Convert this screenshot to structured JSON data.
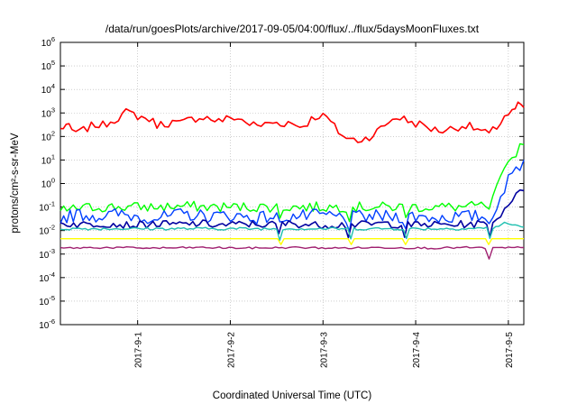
{
  "chart_data": {
    "type": "line",
    "title": "/data/run/goesPlots/archive/2017-09-05/04:00/flux/../flux/5daysMoonFluxes.txt",
    "xlabel": "Coordinated Universal Time (UTC)",
    "ylabel": "protons/cm²-s-sr-MeV",
    "yscale": "log",
    "ylim": [
      1e-06,
      1000000.0
    ],
    "xlim": [
      "2017-08-31T04:00",
      "2017-09-05T04:00"
    ],
    "grid": true,
    "y_ticks": [
      {
        "base": "10",
        "exp": "-6"
      },
      {
        "base": "10",
        "exp": "-5"
      },
      {
        "base": "10",
        "exp": "-4"
      },
      {
        "base": "10",
        "exp": "-3"
      },
      {
        "base": "10",
        "exp": "-2"
      },
      {
        "base": "10",
        "exp": "-1"
      },
      {
        "base": "10",
        "exp": "0"
      },
      {
        "base": "10",
        "exp": "1"
      },
      {
        "base": "10",
        "exp": "2"
      },
      {
        "base": "10",
        "exp": "3"
      },
      {
        "base": "10",
        "exp": "4"
      },
      {
        "base": "10",
        "exp": "5"
      },
      {
        "base": "10",
        "exp": "6"
      }
    ],
    "x_ticks": [
      "2017-9-1",
      "2017-9-2",
      "2017-9-3",
      "2017-9-4",
      "2017-9-5"
    ],
    "x_tick_dates": [
      "2017-09-01T00:00",
      "2017-09-02T00:00",
      "2017-09-03T00:00",
      "2017-09-04T00:00",
      "2017-09-05T00:00"
    ],
    "series": [
      {
        "color": "#ff0000",
        "points": [
          [
            "2017-08-31T04:00",
            200
          ],
          [
            "2017-08-31T05:30",
            320
          ],
          [
            "2017-08-31T07:00",
            170
          ],
          [
            "2017-08-31T09:00",
            150
          ],
          [
            "2017-08-31T11:00",
            230
          ],
          [
            "2017-08-31T13:00",
            320
          ],
          [
            "2017-08-31T15:00",
            300
          ],
          [
            "2017-08-31T17:00",
            450
          ],
          [
            "2017-08-31T19:00",
            650
          ],
          [
            "2017-08-31T21:00",
            1050
          ],
          [
            "2017-08-31T23:00",
            850
          ],
          [
            "2017-09-01T01:00",
            650
          ],
          [
            "2017-09-01T03:00",
            550
          ],
          [
            "2017-09-01T05:00",
            320
          ],
          [
            "2017-09-01T07:00",
            350
          ],
          [
            "2017-09-01T09:00",
            400
          ],
          [
            "2017-09-01T11:00",
            350
          ],
          [
            "2017-09-01T13:00",
            480
          ],
          [
            "2017-09-01T15:00",
            600
          ],
          [
            "2017-09-01T17:00",
            700
          ],
          [
            "2017-09-01T19:00",
            550
          ],
          [
            "2017-09-01T21:00",
            450
          ],
          [
            "2017-09-01T23:00",
            550
          ],
          [
            "2017-09-02T01:00",
            650
          ],
          [
            "2017-09-02T03:00",
            500
          ],
          [
            "2017-09-02T05:00",
            350
          ],
          [
            "2017-09-02T07:00",
            280
          ],
          [
            "2017-09-02T09:00",
            330
          ],
          [
            "2017-09-02T11:00",
            400
          ],
          [
            "2017-09-02T13:00",
            350
          ],
          [
            "2017-09-02T15:00",
            400
          ],
          [
            "2017-09-02T17:00",
            300
          ],
          [
            "2017-09-02T19:00",
            280
          ],
          [
            "2017-09-02T21:00",
            550
          ],
          [
            "2017-09-02T23:00",
            800
          ],
          [
            "2017-09-03T01:00",
            650
          ],
          [
            "2017-09-03T03:00",
            250
          ],
          [
            "2017-09-03T05:00",
            110
          ],
          [
            "2017-09-03T07:00",
            75
          ],
          [
            "2017-09-03T09:00",
            70
          ],
          [
            "2017-09-03T11:00",
            85
          ],
          [
            "2017-09-03T13:00",
            120
          ],
          [
            "2017-09-03T15:00",
            220
          ],
          [
            "2017-09-03T17:00",
            420
          ],
          [
            "2017-09-03T19:00",
            680
          ],
          [
            "2017-09-03T21:00",
            550
          ],
          [
            "2017-09-03T23:00",
            400
          ],
          [
            "2017-09-04T01:00",
            330
          ],
          [
            "2017-09-04T03:00",
            250
          ],
          [
            "2017-09-04T05:00",
            190
          ],
          [
            "2017-09-04T07:00",
            180
          ],
          [
            "2017-09-04T09:00",
            210
          ],
          [
            "2017-09-04T11:00",
            260
          ],
          [
            "2017-09-04T13:00",
            300
          ],
          [
            "2017-09-04T15:00",
            230
          ],
          [
            "2017-09-04T17:00",
            170
          ],
          [
            "2017-09-04T19:00",
            120
          ],
          [
            "2017-09-04T21:00",
            250
          ],
          [
            "2017-09-04T23:00",
            750
          ],
          [
            "2017-09-05T01:00",
            1100
          ],
          [
            "2017-09-05T02:30",
            2000
          ],
          [
            "2017-09-05T04:00",
            1700
          ]
        ]
      },
      {
        "color": "#00ff00",
        "points": [
          [
            "2017-08-31T04:00",
            0.07
          ],
          [
            "2017-08-31T09:00",
            0.09
          ],
          [
            "2017-08-31T14:00",
            0.1
          ],
          [
            "2017-08-31T19:00",
            0.1
          ],
          [
            "2017-09-01T00:00",
            0.1
          ],
          [
            "2017-09-01T06:00",
            0.1
          ],
          [
            "2017-09-01T12:00",
            0.11
          ],
          [
            "2017-09-01T18:00",
            0.1
          ],
          [
            "2017-09-02T00:00",
            0.1
          ],
          [
            "2017-09-02T06:00",
            0.1
          ],
          [
            "2017-09-02T12:00",
            0.1
          ],
          [
            "2017-09-02T18:00",
            0.1
          ],
          [
            "2017-09-03T00:00",
            0.1
          ],
          [
            "2017-09-03T06:00",
            0.1
          ],
          [
            "2017-09-03T12:00",
            0.1
          ],
          [
            "2017-09-03T18:00",
            0.1
          ],
          [
            "2017-09-04T00:00",
            0.1
          ],
          [
            "2017-09-04T06:00",
            0.1
          ],
          [
            "2017-09-04T12:00",
            0.1
          ],
          [
            "2017-09-04T17:00",
            0.11
          ],
          [
            "2017-09-04T19:00",
            0.15
          ],
          [
            "2017-09-04T21:00",
            0.6
          ],
          [
            "2017-09-04T23:00",
            3
          ],
          [
            "2017-09-05T01:00",
            12
          ],
          [
            "2017-09-05T03:00",
            40
          ],
          [
            "2017-09-05T04:00",
            45
          ]
        ]
      },
      {
        "color": "#0040ff",
        "points": [
          [
            "2017-08-31T04:00",
            0.035
          ],
          [
            "2017-08-31T09:00",
            0.05
          ],
          [
            "2017-08-31T14:00",
            0.04
          ],
          [
            "2017-08-31T19:00",
            0.05
          ],
          [
            "2017-09-01T00:00",
            0.04
          ],
          [
            "2017-09-01T06:00",
            0.035
          ],
          [
            "2017-09-01T12:00",
            0.05
          ],
          [
            "2017-09-01T18:00",
            0.04
          ],
          [
            "2017-09-02T00:00",
            0.045
          ],
          [
            "2017-09-02T06:00",
            0.035
          ],
          [
            "2017-09-02T12:00",
            0.04
          ],
          [
            "2017-09-02T18:00",
            0.04
          ],
          [
            "2017-09-03T00:00",
            0.045
          ],
          [
            "2017-09-03T06:00",
            0.035
          ],
          [
            "2017-09-03T12:00",
            0.04
          ],
          [
            "2017-09-03T18:00",
            0.04
          ],
          [
            "2017-09-04T00:00",
            0.04
          ],
          [
            "2017-09-04T06:00",
            0.035
          ],
          [
            "2017-09-04T12:00",
            0.04
          ],
          [
            "2017-09-04T18:00",
            0.04
          ],
          [
            "2017-09-04T20:00",
            0.06
          ],
          [
            "2017-09-04T22:00",
            0.3
          ],
          [
            "2017-09-05T00:00",
            1.3
          ],
          [
            "2017-09-05T02:00",
            4
          ],
          [
            "2017-09-05T04:00",
            10
          ]
        ]
      },
      {
        "color": "#0000a0",
        "points": [
          [
            "2017-08-31T04:00",
            0.02
          ],
          [
            "2017-08-31T10:00",
            0.018
          ],
          [
            "2017-08-31T16:00",
            0.02
          ],
          [
            "2017-08-31T22:00",
            0.017
          ],
          [
            "2017-09-01T04:00",
            0.019
          ],
          [
            "2017-09-01T10:00",
            0.018
          ],
          [
            "2017-09-01T16:00",
            0.02
          ],
          [
            "2017-09-01T22:00",
            0.017
          ],
          [
            "2017-09-02T04:00",
            0.019
          ],
          [
            "2017-09-02T10:00",
            0.018
          ],
          [
            "2017-09-02T16:00",
            0.02
          ],
          [
            "2017-09-02T22:00",
            0.017
          ],
          [
            "2017-09-03T04:00",
            0.018
          ],
          [
            "2017-09-03T10:00",
            0.018
          ],
          [
            "2017-09-03T16:00",
            0.02
          ],
          [
            "2017-09-03T22:00",
            0.017
          ],
          [
            "2017-09-04T04:00",
            0.018
          ],
          [
            "2017-09-04T10:00",
            0.018
          ],
          [
            "2017-09-04T16:00",
            0.019
          ],
          [
            "2017-09-04T20:00",
            0.02
          ],
          [
            "2017-09-04T22:00",
            0.05
          ],
          [
            "2017-09-05T00:00",
            0.15
          ],
          [
            "2017-09-05T02:00",
            0.3
          ],
          [
            "2017-09-05T04:00",
            0.5
          ]
        ]
      },
      {
        "color": "#20c0b0",
        "points": [
          [
            "2017-08-31T04:00",
            0.012
          ],
          [
            "2017-08-31T12:00",
            0.012
          ],
          [
            "2017-08-31T20:00",
            0.012
          ],
          [
            "2017-09-01T04:00",
            0.012
          ],
          [
            "2017-09-01T12:00",
            0.012
          ],
          [
            "2017-09-01T20:00",
            0.012
          ],
          [
            "2017-09-02T04:00",
            0.012
          ],
          [
            "2017-09-02T12:00",
            0.012
          ],
          [
            "2017-09-02T20:00",
            0.012
          ],
          [
            "2017-09-03T04:00",
            0.012
          ],
          [
            "2017-09-03T12:00",
            0.012
          ],
          [
            "2017-09-03T20:00",
            0.012
          ],
          [
            "2017-09-04T04:00",
            0.012
          ],
          [
            "2017-09-04T12:00",
            0.012
          ],
          [
            "2017-09-04T20:00",
            0.013
          ],
          [
            "2017-09-04T23:00",
            0.02
          ],
          [
            "2017-09-05T01:00",
            0.018
          ],
          [
            "2017-09-05T04:00",
            0.014
          ]
        ]
      },
      {
        "color": "#ffff00",
        "points": [
          [
            "2017-08-31T04:00",
            0.0045
          ],
          [
            "2017-09-01T04:00",
            0.0045
          ],
          [
            "2017-09-02T04:00",
            0.0045
          ],
          [
            "2017-09-03T04:00",
            0.0045
          ],
          [
            "2017-09-04T04:00",
            0.0045
          ],
          [
            "2017-09-05T04:00",
            0.0045
          ]
        ]
      },
      {
        "color": "#a02070",
        "points": [
          [
            "2017-08-31T04:00",
            0.0018
          ],
          [
            "2017-08-31T16:00",
            0.0019
          ],
          [
            "2017-09-01T04:00",
            0.0018
          ],
          [
            "2017-09-01T16:00",
            0.0019
          ],
          [
            "2017-09-02T04:00",
            0.0018
          ],
          [
            "2017-09-02T16:00",
            0.0019
          ],
          [
            "2017-09-03T04:00",
            0.0018
          ],
          [
            "2017-09-03T16:00",
            0.0019
          ],
          [
            "2017-09-04T04:00",
            0.0018
          ],
          [
            "2017-09-04T14:00",
            0.0019
          ],
          [
            "2017-09-04T18:00",
            0.0018
          ],
          [
            "2017-09-04T19:00",
            0.0006
          ],
          [
            "2017-09-04T20:00",
            0.0018
          ],
          [
            "2017-09-05T04:00",
            0.0019
          ]
        ]
      }
    ],
    "dips": [
      "2017-09-02T13:00",
      "2017-09-03T07:00",
      "2017-09-03T21:30",
      "2017-09-04T19:00"
    ]
  }
}
